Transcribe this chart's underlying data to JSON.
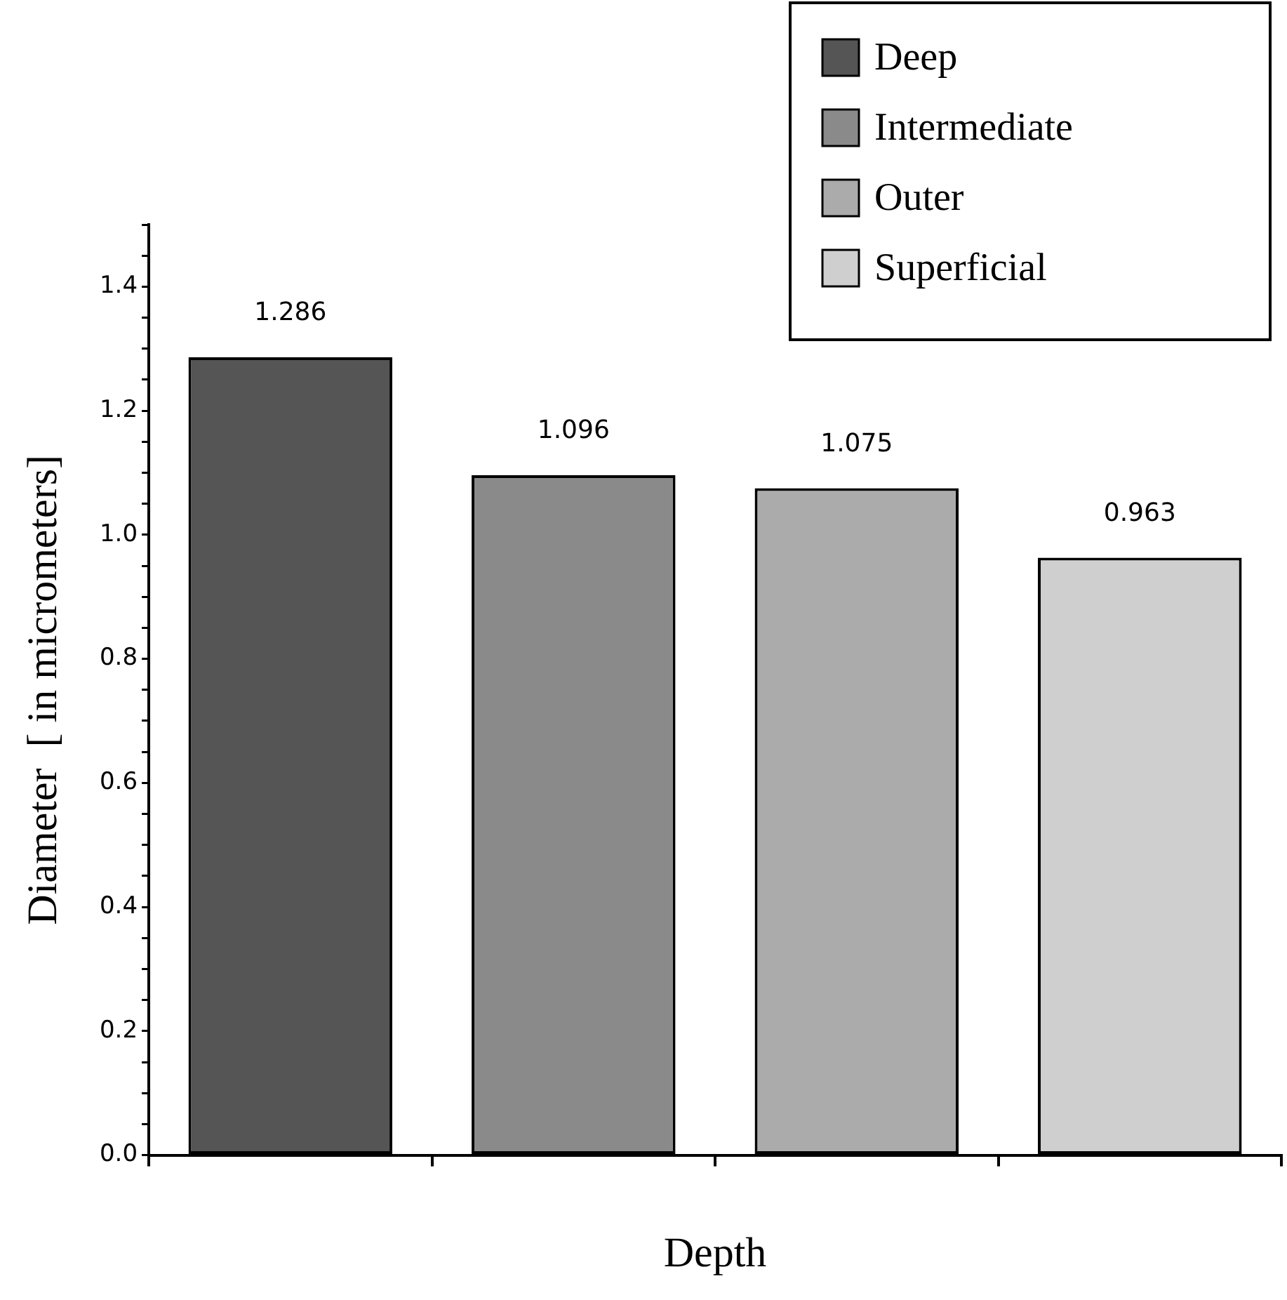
{
  "chart_data": {
    "type": "bar",
    "xlabel": "Depth",
    "ylabel": "Diameter  [ in micrometers]",
    "categories": [
      null,
      null,
      null,
      null
    ],
    "series": [
      {
        "name": "Deep",
        "color": "#555555",
        "values": [
          1.286,
          null,
          null,
          null
        ]
      },
      {
        "name": "Intermediate",
        "color": "#8a8a8a",
        "values": [
          null,
          1.096,
          null,
          null
        ]
      },
      {
        "name": "Outer",
        "color": "#ababab",
        "values": [
          null,
          null,
          1.075,
          null
        ]
      },
      {
        "name": "Superficial",
        "color": "#cfcfcf",
        "values": [
          null,
          null,
          null,
          0.963
        ]
      }
    ],
    "ylim": [
      0,
      1.5
    ],
    "yticks": [
      {
        "value": 0,
        "label": "0.0"
      },
      {
        "value": 0.05,
        "label": null
      },
      {
        "value": 0.1,
        "label": null
      },
      {
        "value": 0.15,
        "label": null
      },
      {
        "value": 0.2,
        "label": "0.2"
      },
      {
        "value": 0.25,
        "label": null
      },
      {
        "value": 0.3,
        "label": null
      },
      {
        "value": 0.35,
        "label": null
      },
      {
        "value": 0.4,
        "label": "0.4"
      },
      {
        "value": 0.45,
        "label": null
      },
      {
        "value": 0.5,
        "label": null
      },
      {
        "value": 0.55,
        "label": null
      },
      {
        "value": 0.6,
        "label": "0.6"
      },
      {
        "value": 0.65,
        "label": null
      },
      {
        "value": 0.7,
        "label": null
      },
      {
        "value": 0.75,
        "label": null
      },
      {
        "value": 0.8,
        "label": "0.8"
      },
      {
        "value": 0.85,
        "label": null
      },
      {
        "value": 0.9,
        "label": null
      },
      {
        "value": 0.95,
        "label": null
      },
      {
        "value": 1.0,
        "label": "1.0"
      },
      {
        "value": 1.05,
        "label": null
      },
      {
        "value": 1.1,
        "label": null
      },
      {
        "value": 1.15,
        "label": null
      },
      {
        "value": 1.2,
        "label": "1.2"
      },
      {
        "value": 1.25,
        "label": null
      },
      {
        "value": 1.3,
        "label": null
      },
      {
        "value": 1.35,
        "label": null
      },
      {
        "value": 1.4,
        "label": "1.4"
      },
      {
        "value": 1.45,
        "label": null
      },
      {
        "value": 1.5,
        "label": null
      }
    ],
    "data_labels": true,
    "grid": false,
    "legend": "top right"
  }
}
